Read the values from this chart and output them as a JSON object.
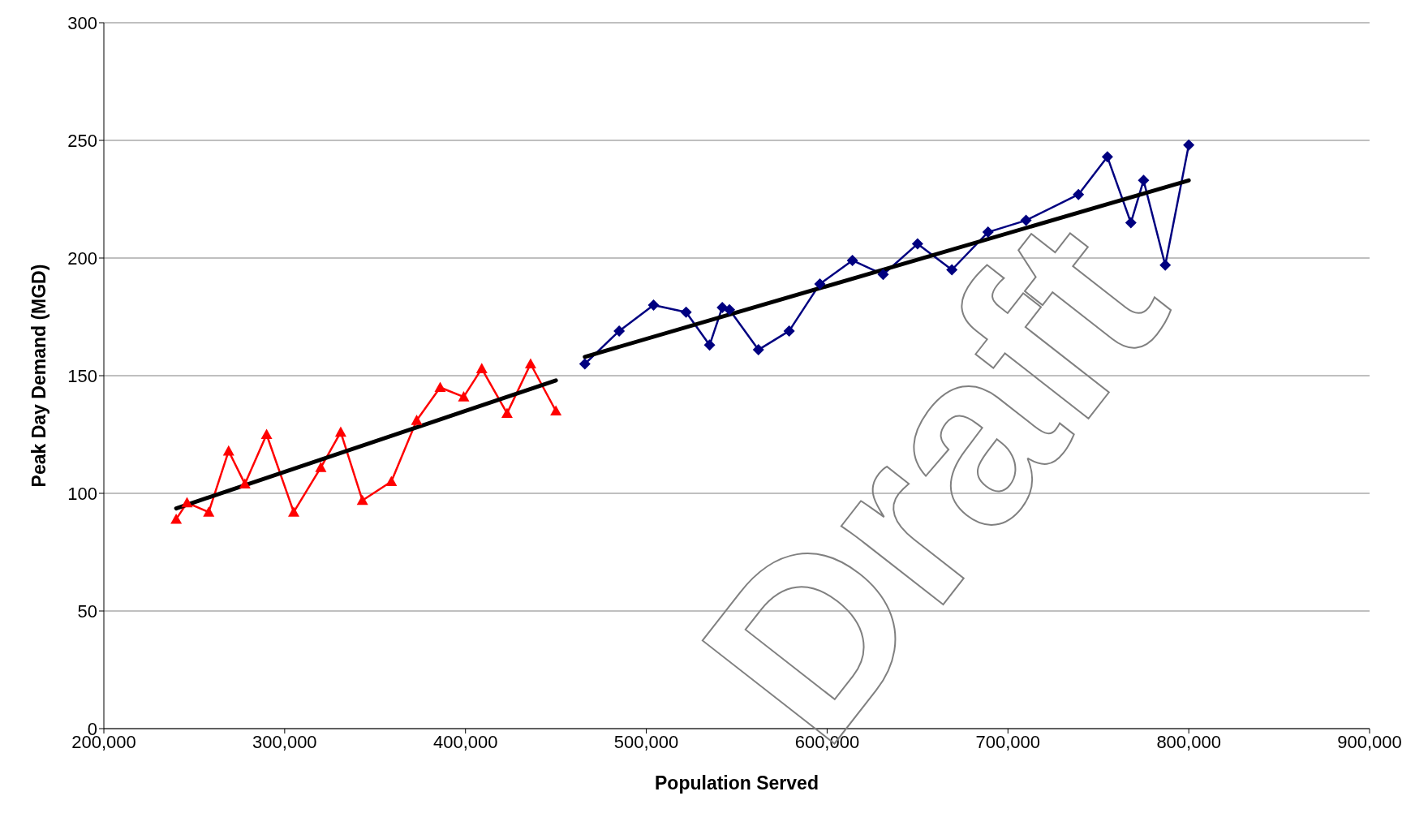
{
  "chart_data": {
    "type": "line",
    "xlabel": "Population Served",
    "ylabel": "Peak Day Demand (MGD)",
    "xlim": [
      200000,
      900000
    ],
    "xticks": [
      {
        "value": 200000,
        "label": "200,000"
      },
      {
        "value": 300000,
        "label": "300,000"
      },
      {
        "value": 400000,
        "label": "400,000"
      },
      {
        "value": 500000,
        "label": "500,000"
      },
      {
        "value": 600000,
        "label": "600,000"
      },
      {
        "value": 700000,
        "label": "700,000"
      },
      {
        "value": 800000,
        "label": "800,000"
      },
      {
        "value": 900000,
        "label": "900,000"
      }
    ],
    "ylim": [
      0,
      300
    ],
    "yticks": [
      0,
      50,
      100,
      150,
      200,
      250,
      300
    ],
    "grid": "y",
    "series": [
      {
        "color": "#ff0000",
        "marker": "triangle",
        "x": [
          240000,
          246000,
          258000,
          269000,
          278000,
          290000,
          305000,
          320000,
          331000,
          343000,
          359000,
          373000,
          386000,
          399000,
          409000,
          423000,
          436000,
          450000
        ],
        "values": [
          89,
          96,
          92,
          118,
          104,
          125,
          92,
          111,
          126,
          97,
          105,
          131,
          145,
          141,
          153,
          134,
          155,
          135
        ]
      },
      {
        "color": "#000080",
        "marker": "diamond",
        "x": [
          466000,
          485000,
          504000,
          522000,
          535000,
          542000,
          546000,
          562000,
          579000,
          596000,
          614000,
          631000,
          650000,
          669000,
          689000,
          710000,
          739000,
          755000,
          768000,
          775000,
          787000,
          800000
        ],
        "values": [
          155,
          169,
          180,
          177,
          163,
          179,
          178,
          161,
          169,
          189,
          199,
          193,
          206,
          195,
          211,
          216,
          227,
          243,
          215,
          233,
          197,
          248
        ]
      },
      {
        "color": "#000000",
        "marker": "none",
        "x": [
          240000,
          450000
        ],
        "values": [
          93.6,
          148
        ]
      },
      {
        "color": "#000000",
        "marker": "none",
        "x": [
          466000,
          800000
        ],
        "values": [
          158,
          233
        ]
      }
    ],
    "annotations": [
      "Draft"
    ]
  }
}
